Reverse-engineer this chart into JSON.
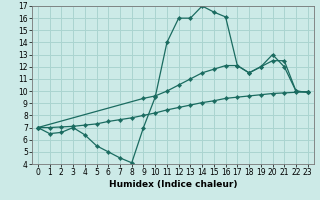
{
  "bg_color": "#cceae7",
  "grid_color": "#aad4d0",
  "line_color": "#1a6b60",
  "x_label": "Humidex (Indice chaleur)",
  "ylim": [
    4,
    17
  ],
  "xlim": [
    -0.5,
    23.5
  ],
  "yticks": [
    4,
    5,
    6,
    7,
    8,
    9,
    10,
    11,
    12,
    13,
    14,
    15,
    16,
    17
  ],
  "xticks": [
    0,
    1,
    2,
    3,
    4,
    5,
    6,
    7,
    8,
    9,
    10,
    11,
    12,
    13,
    14,
    15,
    16,
    17,
    18,
    19,
    20,
    21,
    22,
    23
  ],
  "line1_x": [
    0,
    1,
    2,
    3,
    4,
    5,
    6,
    7,
    8,
    9,
    10,
    11,
    12,
    13,
    14,
    15,
    16,
    17,
    18,
    19,
    20,
    21,
    22,
    23
  ],
  "line1_y": [
    7.0,
    6.5,
    6.6,
    7.0,
    6.4,
    5.5,
    5.0,
    4.5,
    4.1,
    7.0,
    9.5,
    14.0,
    16.0,
    16.0,
    17.0,
    16.5,
    16.1,
    12.1,
    11.5,
    12.0,
    13.0,
    12.0,
    10.0,
    9.9
  ],
  "line2_x": [
    0,
    9,
    10,
    11,
    12,
    13,
    14,
    15,
    16,
    17,
    18,
    19,
    20,
    21,
    22,
    23
  ],
  "line2_y": [
    7.0,
    9.4,
    9.6,
    10.0,
    10.5,
    11.0,
    11.5,
    11.8,
    12.1,
    12.1,
    11.5,
    12.0,
    12.5,
    12.5,
    10.0,
    9.9
  ],
  "line3_x": [
    0,
    1,
    2,
    3,
    4,
    5,
    6,
    7,
    8,
    9,
    10,
    11,
    12,
    13,
    14,
    15,
    16,
    17,
    18,
    19,
    20,
    21,
    22,
    23
  ],
  "line3_y": [
    7.0,
    7.0,
    7.05,
    7.1,
    7.2,
    7.3,
    7.5,
    7.65,
    7.8,
    8.0,
    8.2,
    8.45,
    8.65,
    8.85,
    9.05,
    9.2,
    9.4,
    9.5,
    9.6,
    9.7,
    9.8,
    9.85,
    9.9,
    9.95
  ]
}
